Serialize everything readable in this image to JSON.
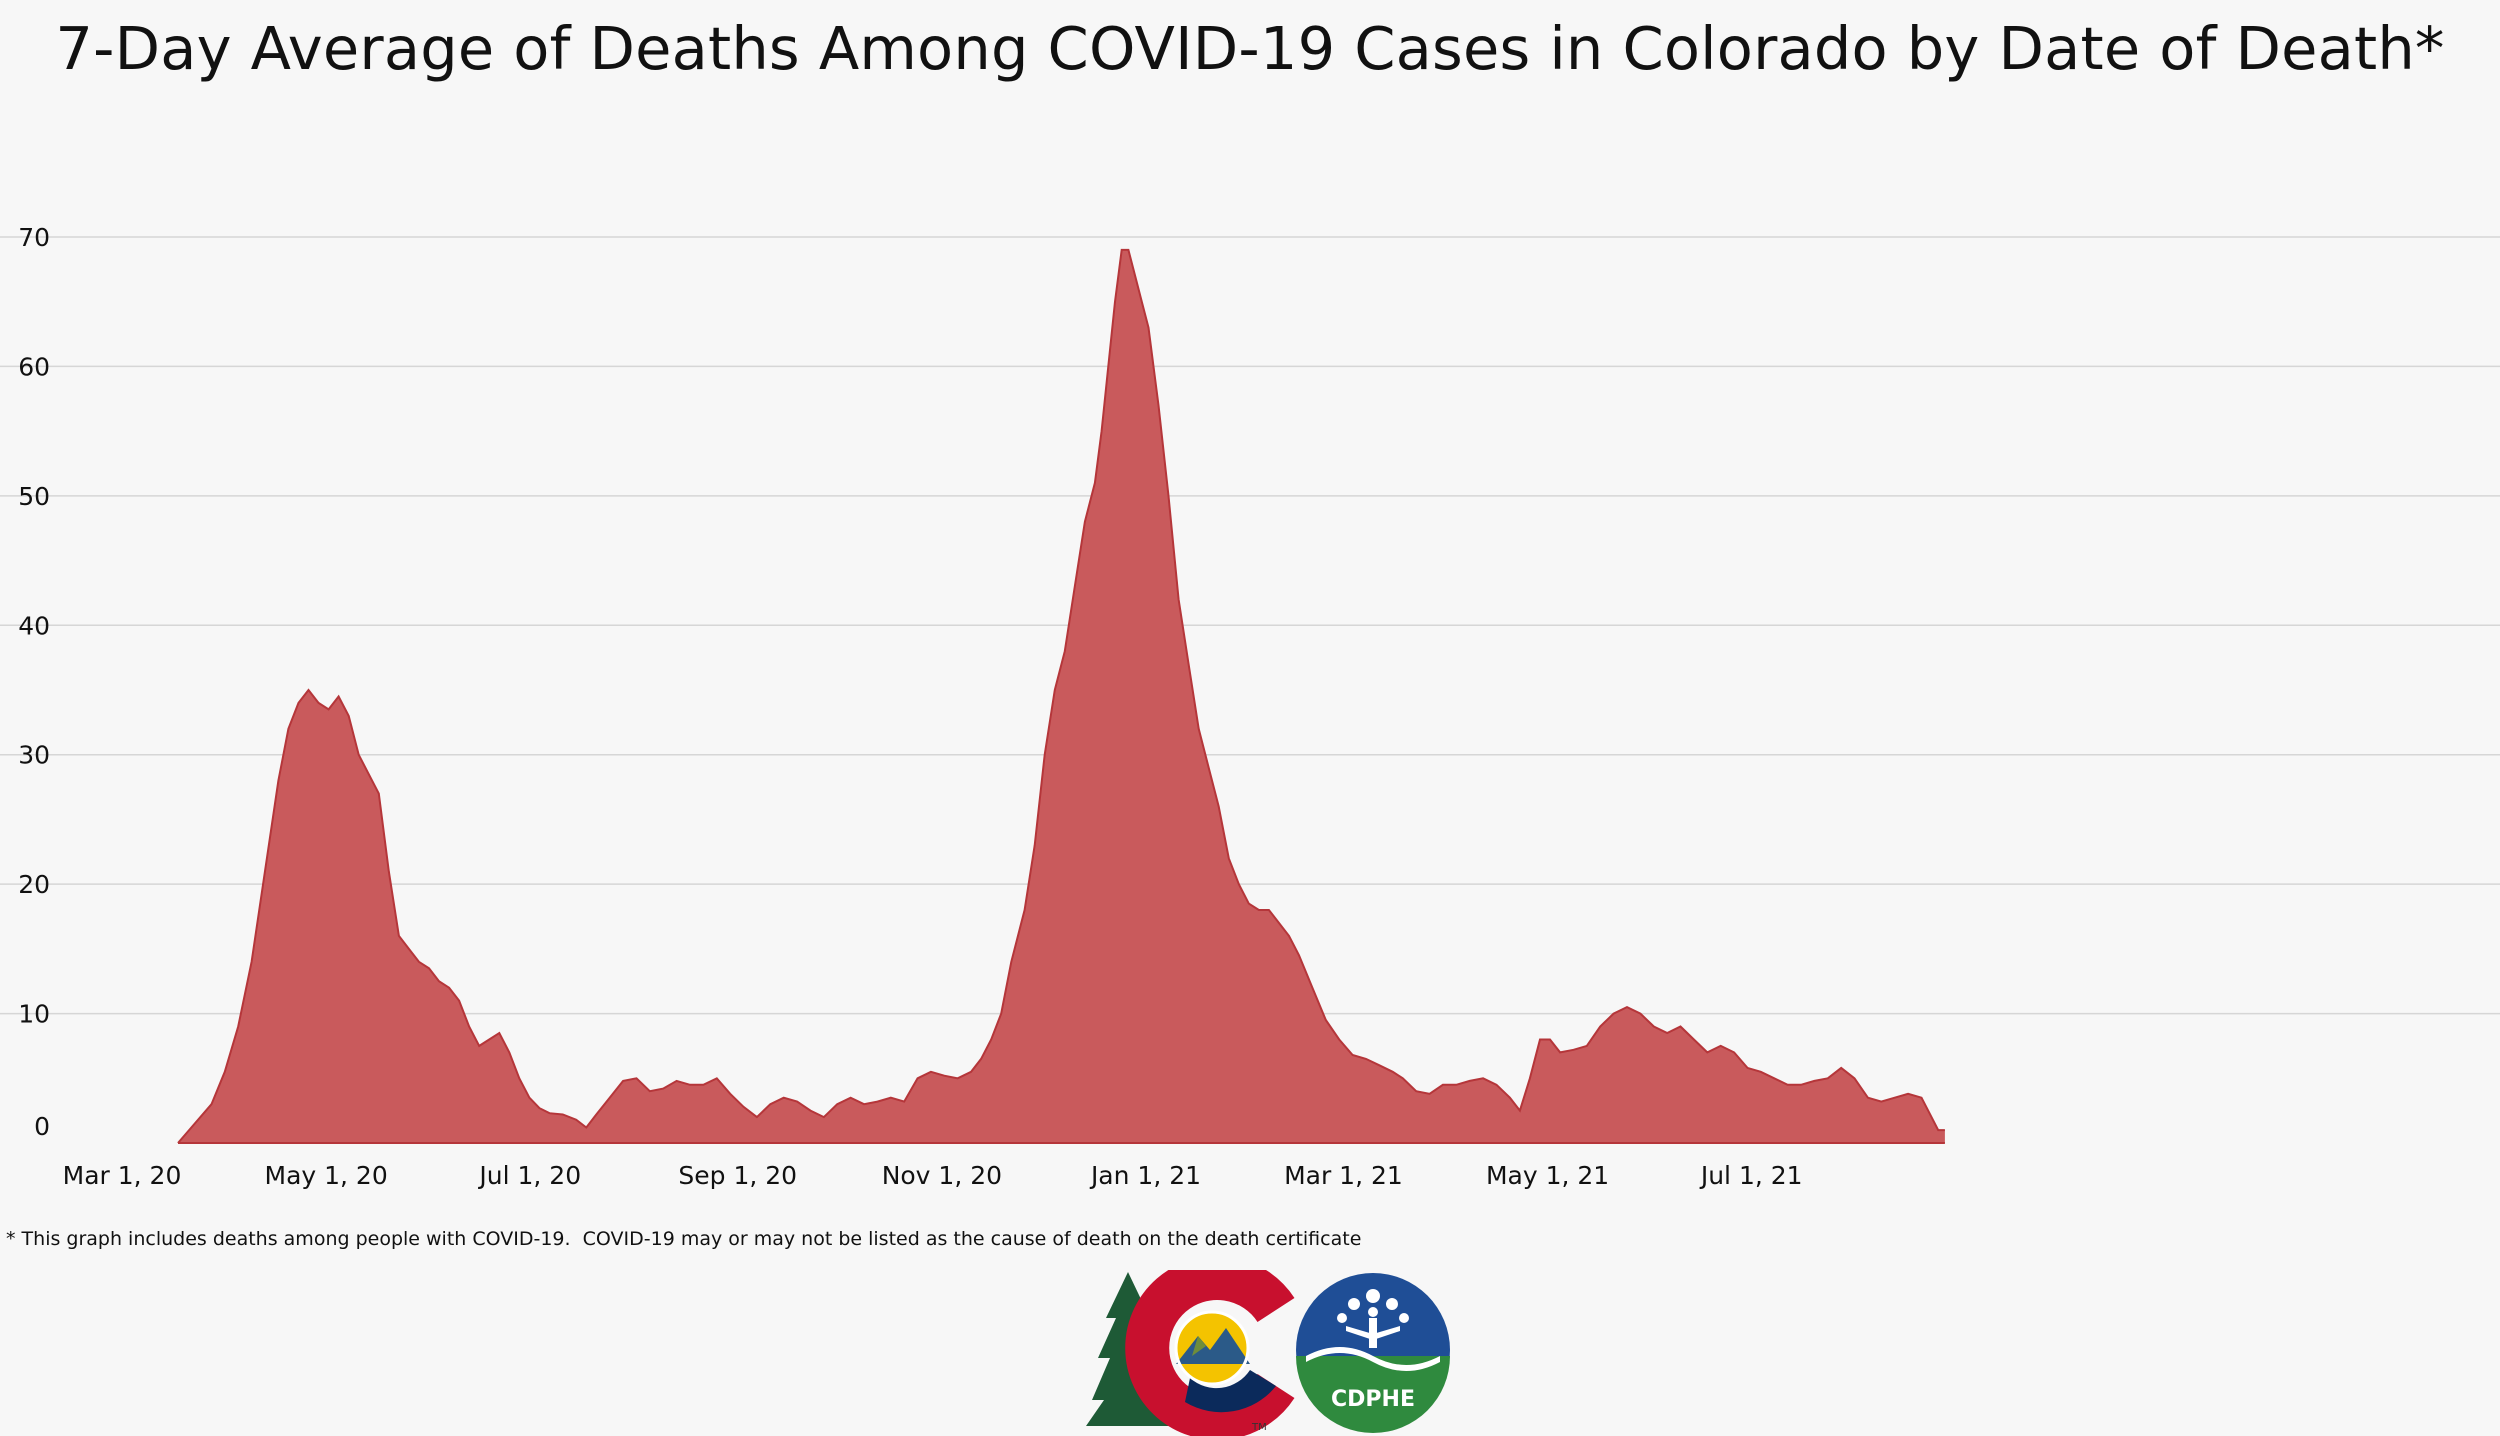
{
  "title": "7-Day Average of Deaths Among COVID-19 Cases in Colorado by Date of Death*",
  "footnote": "* This graph includes deaths among people with COVID-19.  COVID-19 may or may not be listed as the cause of death on the death certificate",
  "logos": {
    "state_logo_mark": "TM",
    "agency_logo_text": "CDPHE"
  },
  "colors": {
    "area_fill": "#c95a5c",
    "area_line": "#b5363a",
    "gridline": "#d6d6d6",
    "background": "#f7f7f7"
  },
  "chart_data": {
    "type": "area",
    "title": "7-Day Average of Deaths Among COVID-19 Cases in Colorado by Date of Death*",
    "xlabel": "",
    "ylabel": "",
    "ylim": [
      0,
      70
    ],
    "yticks": [
      0,
      10,
      20,
      30,
      40,
      50,
      60,
      70
    ],
    "xlim": [
      "2020-03-01",
      "2021-08-31"
    ],
    "xticks": [
      {
        "date": "2020-03-01",
        "label": "Mar 1, 20"
      },
      {
        "date": "2020-05-01",
        "label": "May 1, 20"
      },
      {
        "date": "2020-07-01",
        "label": "Jul 1, 20"
      },
      {
        "date": "2020-09-01",
        "label": "Sep 1, 20"
      },
      {
        "date": "2020-11-01",
        "label": "Nov 1, 20"
      },
      {
        "date": "2021-01-01",
        "label": "Jan 1, 21"
      },
      {
        "date": "2021-03-01",
        "label": "Mar 1, 21"
      },
      {
        "date": "2021-05-01",
        "label": "May 1, 21"
      },
      {
        "date": "2021-07-01",
        "label": "Jul 1, 21"
      }
    ],
    "grid": true,
    "series": [
      {
        "points": [
          [
            "2020-03-01",
            0
          ],
          [
            "2020-03-06",
            1.5
          ],
          [
            "2020-03-11",
            3
          ],
          [
            "2020-03-15",
            5.5
          ],
          [
            "2020-03-19",
            9
          ],
          [
            "2020-03-23",
            14
          ],
          [
            "2020-03-27",
            21
          ],
          [
            "2020-03-31",
            28
          ],
          [
            "2020-04-03",
            32
          ],
          [
            "2020-04-06",
            34
          ],
          [
            "2020-04-09",
            35
          ],
          [
            "2020-04-12",
            34
          ],
          [
            "2020-04-15",
            33.5
          ],
          [
            "2020-04-18",
            34.5
          ],
          [
            "2020-04-21",
            33
          ],
          [
            "2020-04-24",
            30
          ],
          [
            "2020-04-27",
            28.5
          ],
          [
            "2020-04-30",
            27
          ],
          [
            "2020-05-03",
            21
          ],
          [
            "2020-05-06",
            16
          ],
          [
            "2020-05-09",
            15
          ],
          [
            "2020-05-12",
            14
          ],
          [
            "2020-05-15",
            13.5
          ],
          [
            "2020-05-18",
            12.5
          ],
          [
            "2020-05-21",
            12
          ],
          [
            "2020-05-24",
            11
          ],
          [
            "2020-05-27",
            9
          ],
          [
            "2020-05-30",
            7.5
          ],
          [
            "2020-06-02",
            8
          ],
          [
            "2020-06-05",
            8.5
          ],
          [
            "2020-06-08",
            7
          ],
          [
            "2020-06-11",
            5
          ],
          [
            "2020-06-14",
            3.5
          ],
          [
            "2020-06-17",
            2.7
          ],
          [
            "2020-06-20",
            2.3
          ],
          [
            "2020-06-24",
            2.2
          ],
          [
            "2020-06-28",
            1.8
          ],
          [
            "2020-07-01",
            1.2
          ],
          [
            "2020-07-04",
            2.2
          ],
          [
            "2020-07-08",
            3.5
          ],
          [
            "2020-07-12",
            4.8
          ],
          [
            "2020-07-16",
            5
          ],
          [
            "2020-07-20",
            4
          ],
          [
            "2020-07-24",
            4.2
          ],
          [
            "2020-07-28",
            4.8
          ],
          [
            "2020-08-01",
            4.5
          ],
          [
            "2020-08-05",
            4.5
          ],
          [
            "2020-08-09",
            5
          ],
          [
            "2020-08-13",
            3.8
          ],
          [
            "2020-08-17",
            2.8
          ],
          [
            "2020-08-21",
            2
          ],
          [
            "2020-08-25",
            3
          ],
          [
            "2020-08-29",
            3.5
          ],
          [
            "2020-09-02",
            3.2
          ],
          [
            "2020-09-06",
            2.5
          ],
          [
            "2020-09-10",
            2
          ],
          [
            "2020-09-14",
            3
          ],
          [
            "2020-09-18",
            3.5
          ],
          [
            "2020-09-22",
            3
          ],
          [
            "2020-09-26",
            3.2
          ],
          [
            "2020-09-30",
            3.5
          ],
          [
            "2020-10-04",
            3.2
          ],
          [
            "2020-10-08",
            5
          ],
          [
            "2020-10-12",
            5.5
          ],
          [
            "2020-10-16",
            5.2
          ],
          [
            "2020-10-20",
            5
          ],
          [
            "2020-10-24",
            5.5
          ],
          [
            "2020-10-27",
            6.5
          ],
          [
            "2020-10-30",
            8
          ],
          [
            "2020-11-02",
            10
          ],
          [
            "2020-11-05",
            14
          ],
          [
            "2020-11-09",
            18
          ],
          [
            "2020-11-12",
            23
          ],
          [
            "2020-11-15",
            30
          ],
          [
            "2020-11-18",
            35
          ],
          [
            "2020-11-21",
            38
          ],
          [
            "2020-11-24",
            43
          ],
          [
            "2020-11-27",
            48
          ],
          [
            "2020-11-30",
            51
          ],
          [
            "2020-12-02",
            55
          ],
          [
            "2020-12-04",
            60
          ],
          [
            "2020-12-06",
            65
          ],
          [
            "2020-12-08",
            69
          ],
          [
            "2020-12-10",
            69
          ],
          [
            "2020-12-12",
            67
          ],
          [
            "2020-12-14",
            65
          ],
          [
            "2020-12-16",
            63
          ],
          [
            "2020-12-19",
            57
          ],
          [
            "2020-12-22",
            50
          ],
          [
            "2020-12-25",
            42
          ],
          [
            "2020-12-28",
            37
          ],
          [
            "2020-12-31",
            32
          ],
          [
            "2021-01-03",
            29
          ],
          [
            "2021-01-06",
            26
          ],
          [
            "2021-01-09",
            22
          ],
          [
            "2021-01-12",
            20
          ],
          [
            "2021-01-15",
            18.5
          ],
          [
            "2021-01-18",
            18
          ],
          [
            "2021-01-21",
            18
          ],
          [
            "2021-01-24",
            17
          ],
          [
            "2021-01-27",
            16
          ],
          [
            "2021-01-30",
            14.5
          ],
          [
            "2021-02-03",
            12
          ],
          [
            "2021-02-07",
            9.5
          ],
          [
            "2021-02-11",
            8
          ],
          [
            "2021-02-15",
            6.8
          ],
          [
            "2021-02-19",
            6.5
          ],
          [
            "2021-02-23",
            6
          ],
          [
            "2021-02-27",
            5.5
          ],
          [
            "2021-03-02",
            5
          ],
          [
            "2021-03-06",
            4
          ],
          [
            "2021-03-10",
            3.8
          ],
          [
            "2021-03-14",
            4.5
          ],
          [
            "2021-03-18",
            4.5
          ],
          [
            "2021-03-22",
            4.8
          ],
          [
            "2021-03-26",
            5
          ],
          [
            "2021-03-30",
            4.5
          ],
          [
            "2021-04-03",
            3.5
          ],
          [
            "2021-04-06",
            2.5
          ],
          [
            "2021-04-09",
            5
          ],
          [
            "2021-04-12",
            8
          ],
          [
            "2021-04-15",
            8
          ],
          [
            "2021-04-18",
            7
          ],
          [
            "2021-04-22",
            7.2
          ],
          [
            "2021-04-26",
            7.5
          ],
          [
            "2021-04-30",
            9
          ],
          [
            "2021-05-04",
            10
          ],
          [
            "2021-05-08",
            10.5
          ],
          [
            "2021-05-12",
            10
          ],
          [
            "2021-05-16",
            9
          ],
          [
            "2021-05-20",
            8.5
          ],
          [
            "2021-05-24",
            9
          ],
          [
            "2021-05-28",
            8
          ],
          [
            "2021-06-01",
            7
          ],
          [
            "2021-06-05",
            7.5
          ],
          [
            "2021-06-09",
            7
          ],
          [
            "2021-06-13",
            5.8
          ],
          [
            "2021-06-17",
            5.5
          ],
          [
            "2021-06-21",
            5
          ],
          [
            "2021-06-25",
            4.5
          ],
          [
            "2021-06-29",
            4.5
          ],
          [
            "2021-07-03",
            4.8
          ],
          [
            "2021-07-07",
            5
          ],
          [
            "2021-07-11",
            5.8
          ],
          [
            "2021-07-15",
            5
          ],
          [
            "2021-07-19",
            3.5
          ],
          [
            "2021-07-23",
            3.2
          ],
          [
            "2021-07-27",
            3.5
          ],
          [
            "2021-07-31",
            3.8
          ],
          [
            "2021-08-04",
            3.5
          ],
          [
            "2021-08-07",
            2
          ],
          [
            "2021-08-09",
            1
          ],
          [
            "2021-08-11",
            1
          ]
        ]
      }
    ]
  }
}
